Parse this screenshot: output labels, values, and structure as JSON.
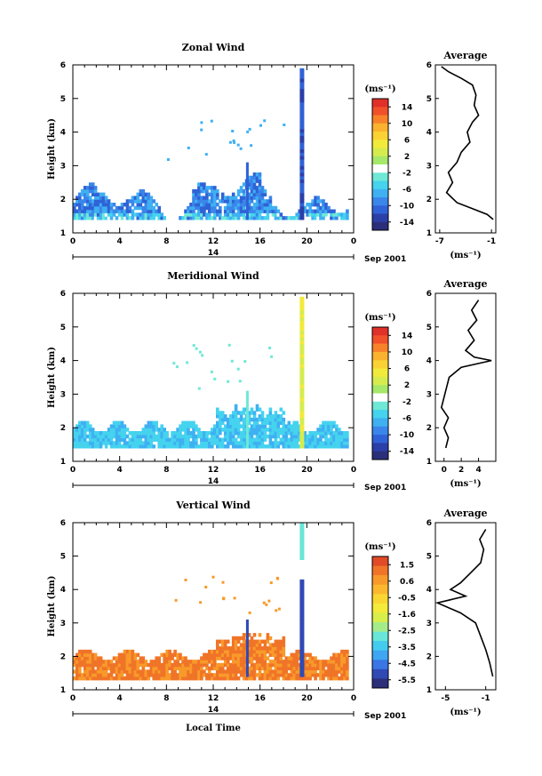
{
  "figure": {
    "x_axis_title": "Local Time",
    "date_label": "14",
    "month_label": "Sep 2001",
    "y_axis_title": "Height (km)",
    "unit_label": "(ms⁻¹)"
  },
  "chart_data": [
    {
      "type": "heatmap",
      "title": "Zonal Wind",
      "xlabel": "",
      "ylabel": "Height (km)",
      "x_ticks": [
        "0",
        "4",
        "8",
        "12",
        "16",
        "20",
        "0"
      ],
      "xlim_hours": [
        0,
        24
      ],
      "ylim": [
        1,
        6
      ],
      "y_ticks": [
        "1",
        "2",
        "3",
        "4",
        "5",
        "6"
      ],
      "colorbar": {
        "unit": "(ms⁻¹)",
        "ticks": [
          "14",
          "10",
          "6",
          "2",
          "-2",
          "-6",
          "-10",
          "-14"
        ],
        "range": [
          -16,
          16
        ]
      },
      "palette_hint": "blue-dominant (negative)",
      "profile": {
        "title": "Average",
        "xlabel": "(ms⁻¹)",
        "x_ticks": [
          "-7",
          "-1"
        ],
        "xlim": [
          -7.5,
          -0.5
        ],
        "points": [
          [
            -0.8,
            1.4
          ],
          [
            -1.5,
            1.55
          ],
          [
            -3.0,
            1.7
          ],
          [
            -5.0,
            1.9
          ],
          [
            -6.2,
            2.2
          ],
          [
            -5.5,
            2.5
          ],
          [
            -6.0,
            2.8
          ],
          [
            -5.0,
            3.1
          ],
          [
            -4.5,
            3.4
          ],
          [
            -3.5,
            3.7
          ],
          [
            -3.8,
            4.0
          ],
          [
            -3.2,
            4.3
          ],
          [
            -2.5,
            4.5
          ],
          [
            -3.0,
            4.8
          ],
          [
            -2.8,
            5.1
          ],
          [
            -3.2,
            5.4
          ],
          [
            -4.5,
            5.6
          ],
          [
            -6.0,
            5.8
          ],
          [
            -6.8,
            5.95
          ]
        ]
      }
    },
    {
      "type": "heatmap",
      "title": "Meridional Wind",
      "xlabel": "",
      "ylabel": "Height (km)",
      "x_ticks": [
        "0",
        "4",
        "8",
        "12",
        "16",
        "20",
        "0"
      ],
      "xlim_hours": [
        0,
        24
      ],
      "ylim": [
        1,
        6
      ],
      "y_ticks": [
        "1",
        "2",
        "3",
        "4",
        "5",
        "6"
      ],
      "colorbar": {
        "unit": "(ms⁻¹)",
        "ticks": [
          "14",
          "10",
          "6",
          "2",
          "-2",
          "-6",
          "-10",
          "-14"
        ],
        "range": [
          -16,
          16
        ]
      },
      "palette_hint": "cyan-dominant",
      "profile": {
        "title": "Average",
        "xlabel": "(ms⁻¹)",
        "x_ticks": [
          "0",
          "2",
          "4"
        ],
        "xlim": [
          -1,
          6
        ],
        "points": [
          [
            0.2,
            1.4
          ],
          [
            0.5,
            1.7
          ],
          [
            0.0,
            2.0
          ],
          [
            0.5,
            2.3
          ],
          [
            -0.3,
            2.6
          ],
          [
            0.0,
            2.9
          ],
          [
            0.3,
            3.2
          ],
          [
            0.6,
            3.5
          ],
          [
            2.0,
            3.8
          ],
          [
            5.5,
            4.0
          ],
          [
            3.5,
            4.1
          ],
          [
            2.5,
            4.3
          ],
          [
            3.5,
            4.6
          ],
          [
            2.8,
            4.9
          ],
          [
            3.8,
            5.2
          ],
          [
            3.2,
            5.5
          ],
          [
            4.0,
            5.8
          ]
        ]
      }
    },
    {
      "type": "heatmap",
      "title": "Vertical Wind",
      "xlabel": "Local Time",
      "ylabel": "Height (km)",
      "x_ticks": [
        "0",
        "4",
        "8",
        "12",
        "16",
        "20",
        "0"
      ],
      "xlim_hours": [
        0,
        24
      ],
      "ylim": [
        1,
        6
      ],
      "y_ticks": [
        "1",
        "2",
        "3",
        "4",
        "5",
        "6"
      ],
      "colorbar": {
        "unit": "(ms⁻¹)",
        "ticks": [
          "1.5",
          "0.6",
          "-0.5",
          "-1.6",
          "-2.5",
          "-3.5",
          "-4.5",
          "-5.5"
        ],
        "range": [
          -6,
          2
        ]
      },
      "palette_hint": "yellow-dominant",
      "profile": {
        "title": "Average",
        "xlabel": "(ms⁻¹)",
        "x_ticks": [
          "-5",
          "-1"
        ],
        "xlim": [
          -6,
          0
        ],
        "points": [
          [
            -0.3,
            1.4
          ],
          [
            -0.6,
            1.8
          ],
          [
            -1.0,
            2.2
          ],
          [
            -1.5,
            2.6
          ],
          [
            -2.0,
            3.0
          ],
          [
            -3.5,
            3.3
          ],
          [
            -5.8,
            3.6
          ],
          [
            -3.0,
            3.8
          ],
          [
            -4.5,
            4.0
          ],
          [
            -3.5,
            4.2
          ],
          [
            -2.5,
            4.5
          ],
          [
            -1.5,
            4.8
          ],
          [
            -1.2,
            5.2
          ],
          [
            -1.6,
            5.5
          ],
          [
            -1.0,
            5.8
          ]
        ]
      }
    }
  ]
}
